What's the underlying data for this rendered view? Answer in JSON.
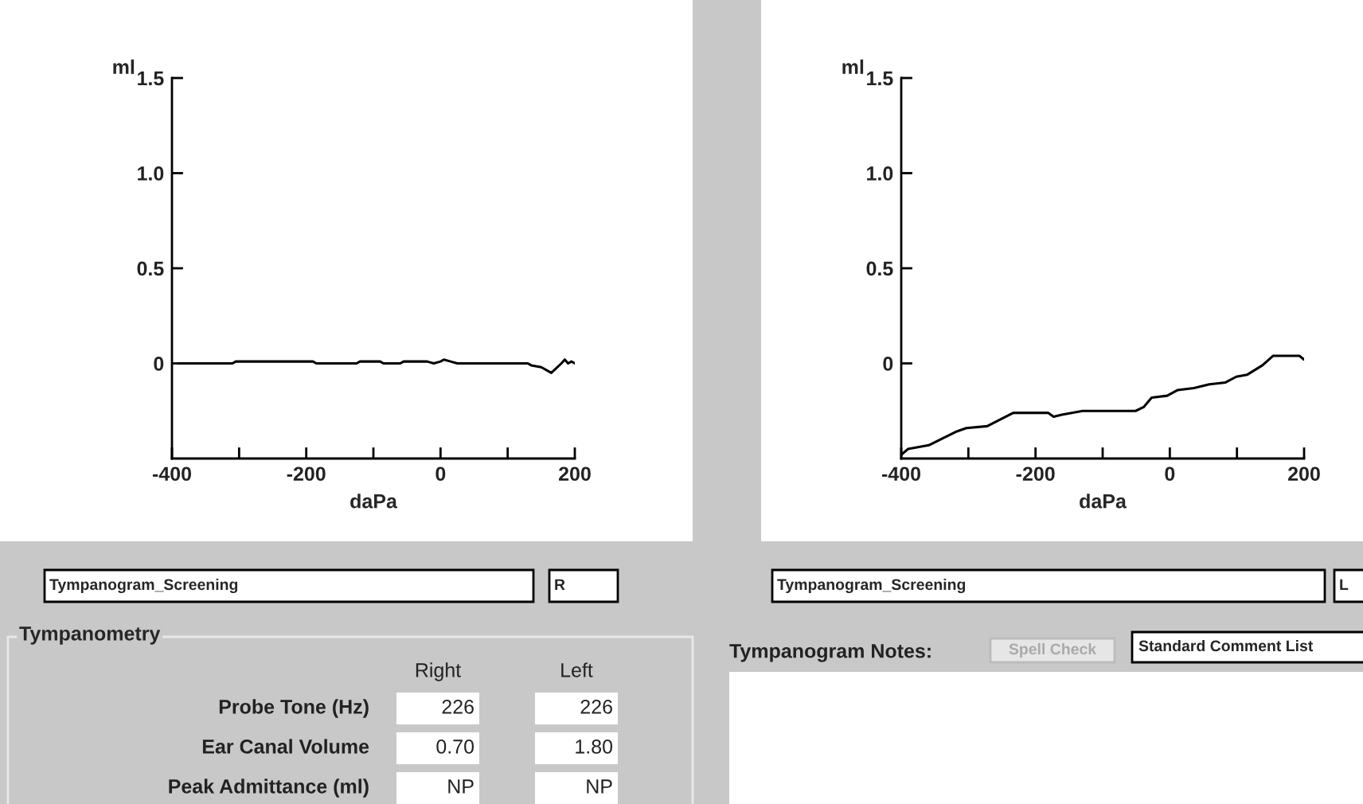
{
  "chart_data": [
    {
      "type": "line",
      "xlabel": "daPa",
      "ylabel": "ml",
      "xlim": [
        -400,
        200
      ],
      "ylim": [
        -0.5,
        1.5
      ],
      "xticks": [
        -400,
        {
          "value": -300,
          "label": null
        },
        -200,
        {
          "value": -100,
          "label": null
        },
        0,
        {
          "value": 100,
          "label": null
        },
        200
      ],
      "yticks": [
        0,
        0.5,
        {
          "value": 1,
          "label": "1.0"
        },
        1.5
      ],
      "grid": false,
      "marker": "none",
      "line_style": "solid",
      "series": [
        {
          "color": "#000000",
          "x": [
            -390,
            -310,
            -305,
            -190,
            -185,
            -125,
            -120,
            -90,
            -85,
            -60,
            -55,
            -20,
            -10,
            0,
            5,
            15,
            25,
            130,
            135,
            150,
            165,
            180,
            185,
            190,
            195,
            200
          ],
          "values": [
            0,
            0,
            0.01,
            0.01,
            0,
            0,
            0.01,
            0.01,
            0,
            0,
            0.01,
            0.01,
            0,
            0.01,
            0.02,
            0.01,
            0,
            0,
            -0.01,
            -0.02,
            -0.05,
            0,
            0.02,
            0,
            0.01,
            0
          ]
        }
      ],
      "annotations": [
        "Tympanogram_Screening",
        "R"
      ]
    },
    {
      "type": "line",
      "xlabel": "daPa",
      "ylabel": "ml",
      "xlim": [
        -400,
        200
      ],
      "ylim": [
        -0.5,
        1.5
      ],
      "xticks": [
        -400,
        {
          "value": -300,
          "label": null
        },
        -200,
        {
          "value": -100,
          "label": null
        },
        0,
        {
          "value": 100,
          "label": null
        },
        200
      ],
      "yticks": [
        0,
        0.5,
        {
          "value": 1,
          "label": "1.0"
        },
        1.5
      ],
      "grid": false,
      "marker": "none",
      "line_style": "solid",
      "series": [
        {
          "color": "#000000",
          "x": [
            -400,
            -390,
            -359,
            -319,
            -303,
            -272,
            -233,
            -181,
            -173,
            -161,
            -130,
            -51,
            -39,
            -27,
            -4,
            12,
            36,
            59,
            83,
            99,
            115,
            138,
            154,
            193,
            200
          ],
          "values": [
            -0.48,
            -0.45,
            -0.43,
            -0.36,
            -0.34,
            -0.33,
            -0.26,
            -0.26,
            -0.28,
            -0.27,
            -0.25,
            -0.25,
            -0.23,
            -0.18,
            -0.17,
            -0.14,
            -0.13,
            -0.11,
            -0.1,
            -0.07,
            -0.06,
            -0.01,
            0.04,
            0.04,
            0.02
          ]
        }
      ],
      "annotations": [
        "Tympanogram_Screening",
        "L"
      ]
    },
    {
      "type": "other",
      "title": "Tympanometry",
      "annotations": [
        "Right",
        "Left",
        "Probe Tone (Hz)",
        "226",
        "226",
        "Ear Canal Volume",
        "0.70",
        "1.80",
        "Peak Admittance (ml)",
        "NP",
        "NP"
      ]
    },
    {
      "type": "other",
      "title": "Tympanogram Notes:",
      "annotations": [
        "Spell Check",
        "Standard Comment List"
      ]
    }
  ]
}
